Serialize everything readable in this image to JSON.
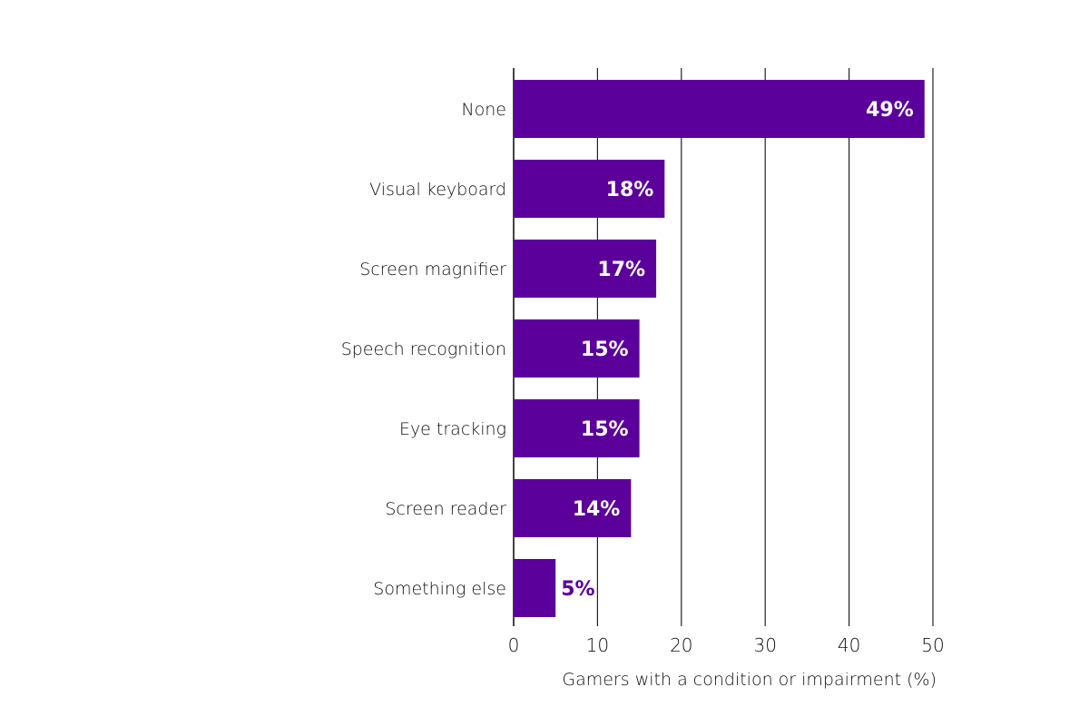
{
  "chart_data": {
    "type": "bar",
    "orientation": "horizontal",
    "categories": [
      "None",
      "Visual keyboard",
      "Screen magnifier",
      "Speech recognition",
      "Eye tracking",
      "Screen reader",
      "Something else"
    ],
    "values": [
      49,
      18,
      17,
      15,
      15,
      14,
      5
    ],
    "data_labels": [
      "49%",
      "18%",
      "17%",
      "15%",
      "15%",
      "14%",
      "5%"
    ],
    "title": "",
    "xlabel": "Gamers with a condition or impairment (%)",
    "ylabel": "",
    "xlim": [
      0,
      50
    ],
    "xticks": [
      0,
      10,
      20,
      30,
      40,
      50
    ],
    "xtick_labels": [
      "0",
      "10",
      "20",
      "30",
      "40",
      "50"
    ],
    "grid": true,
    "bar_color": "#5c009c",
    "label_inside_color": "#ffffff",
    "label_outside_color": "#5c009c"
  }
}
